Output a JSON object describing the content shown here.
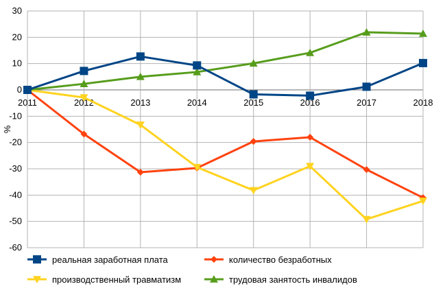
{
  "chart_data": {
    "type": "line",
    "title": "",
    "xlabel": "",
    "ylabel": "%",
    "ylim": [
      -60,
      30
    ],
    "yticks": [
      30,
      20,
      10,
      0,
      -10,
      -20,
      -30,
      -40,
      -50,
      -60
    ],
    "grid": true,
    "legend_position": "bottom",
    "categories": [
      "2011",
      "2012",
      "2013",
      "2014",
      "2015",
      "2016",
      "2017",
      "2018"
    ],
    "series": [
      {
        "name": "реальная заработная плата",
        "color": "#004586",
        "marker": "square",
        "values": [
          0,
          7.2,
          12.7,
          9.3,
          -1.7,
          -2.2,
          1.2,
          10.2
        ]
      },
      {
        "name": "количество  безработных",
        "color": "#ff420e",
        "marker": "diamond",
        "values": [
          0,
          -16.8,
          -31.3,
          -29.7,
          -19.6,
          -18.0,
          -30.3,
          -41.0
        ]
      },
      {
        "name": "производственный травматизм",
        "color": "#ffd320",
        "marker": "triangle-down",
        "values": [
          0,
          -2.9,
          -13.3,
          -29.4,
          -38.2,
          -29.0,
          -49.2,
          -42.2
        ]
      },
      {
        "name": "трудовая занятость инвалидов",
        "color": "#579d1c",
        "marker": "triangle-up",
        "values": [
          0,
          2.3,
          5.0,
          6.8,
          10.1,
          14.1,
          21.9,
          21.4
        ]
      }
    ]
  }
}
